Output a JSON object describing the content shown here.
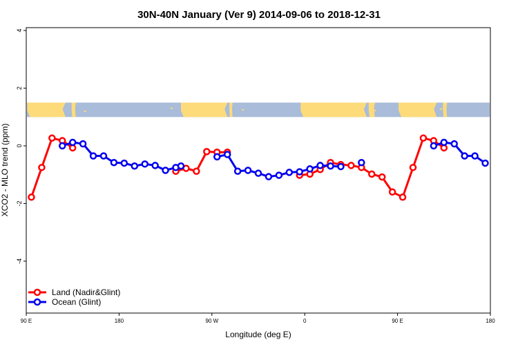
{
  "chart_data": {
    "type": "line",
    "title": "30N-40N January (Ver 9)   2014-09-06 to 2018-12-31",
    "xlabel": "Longitude (deg E)",
    "ylabel": "XCO2 - MLO trend (ppm)",
    "xlim": [
      90,
      540
    ],
    "ylim": [
      -5.8,
      4.1
    ],
    "x_ticks": [
      {
        "value": 90,
        "label": "90 E"
      },
      {
        "value": 180,
        "label": "180"
      },
      {
        "value": 270,
        "label": "90 W"
      },
      {
        "value": 360,
        "label": "0"
      },
      {
        "value": 450,
        "label": "90 E"
      },
      {
        "value": 540,
        "label": "180"
      }
    ],
    "y_ticks": [
      {
        "value": 4,
        "label": "4"
      },
      {
        "value": 2,
        "label": "2"
      },
      {
        "value": 0,
        "label": "0"
      },
      {
        "value": -2,
        "label": "-2"
      },
      {
        "value": -4,
        "label": "-4"
      }
    ],
    "map_band": {
      "y_range": [
        1.0,
        1.5
      ],
      "ocean_color": "#a9bcd9",
      "land_color": "#fddb7a"
    },
    "legend": {
      "position": "bottom-left"
    },
    "series": [
      {
        "name": "Land (Nadir&Glint)",
        "color": "#ff0000",
        "segments": [
          [
            [
              95,
              -1.78
            ],
            [
              105,
              -0.75
            ],
            [
              115,
              0.27
            ],
            [
              125,
              0.18
            ],
            [
              135,
              -0.07
            ]
          ],
          [
            [
              235,
              -0.88
            ],
            [
              245,
              -0.78
            ],
            [
              255,
              -0.88
            ],
            [
              265,
              -0.2
            ],
            [
              275,
              -0.22
            ],
            [
              285,
              -0.22
            ]
          ],
          [
            [
              355,
              -1.02
            ],
            [
              365,
              -0.98
            ],
            [
              375,
              -0.82
            ],
            [
              385,
              -0.58
            ],
            [
              395,
              -0.65
            ],
            [
              405,
              -0.68
            ],
            [
              415,
              -0.75
            ],
            [
              425,
              -0.98
            ],
            [
              435,
              -1.08
            ],
            [
              445,
              -1.6
            ],
            [
              455,
              -1.78
            ],
            [
              465,
              -0.75
            ],
            [
              475,
              0.27
            ],
            [
              485,
              0.18
            ],
            [
              495,
              -0.07
            ]
          ]
        ]
      },
      {
        "name": "Ocean (Glint)",
        "color": "#0000ee",
        "segments": [
          [
            [
              125,
              0.0
            ],
            [
              135,
              0.12
            ],
            [
              145,
              0.07
            ],
            [
              155,
              -0.35
            ],
            [
              165,
              -0.35
            ],
            [
              175,
              -0.58
            ],
            [
              185,
              -0.6
            ],
            [
              195,
              -0.7
            ],
            [
              205,
              -0.63
            ],
            [
              215,
              -0.68
            ],
            [
              225,
              -0.85
            ],
            [
              235,
              -0.75
            ],
            [
              240,
              -0.7
            ]
          ],
          [
            [
              275,
              -0.38
            ],
            [
              285,
              -0.3
            ],
            [
              295,
              -0.88
            ],
            [
              305,
              -0.85
            ],
            [
              315,
              -0.95
            ],
            [
              325,
              -1.07
            ],
            [
              335,
              -1.02
            ],
            [
              345,
              -0.92
            ],
            [
              355,
              -0.9
            ],
            [
              365,
              -0.8
            ],
            [
              375,
              -0.68
            ],
            [
              385,
              -0.7
            ],
            [
              395,
              -0.72
            ]
          ],
          [
            [
              415,
              -0.58
            ]
          ],
          [
            [
              485,
              0.0
            ],
            [
              495,
              0.12
            ],
            [
              505,
              0.07
            ],
            [
              515,
              -0.35
            ],
            [
              525,
              -0.35
            ],
            [
              535,
              -0.6
            ]
          ]
        ]
      }
    ]
  }
}
